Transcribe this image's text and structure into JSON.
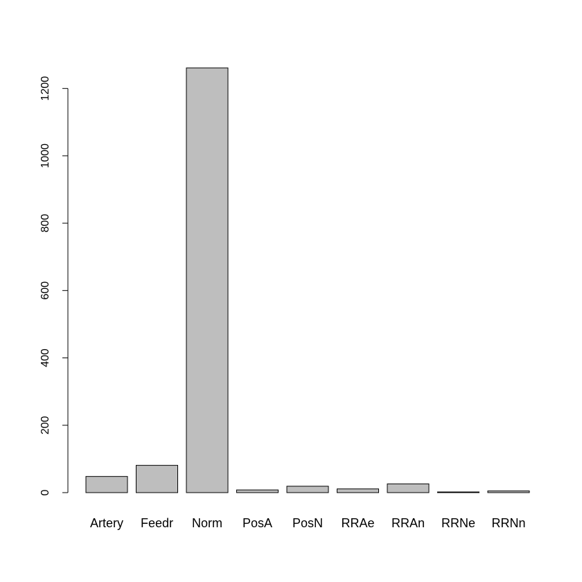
{
  "chart_data": {
    "type": "bar",
    "categories": [
      "Artery",
      "Feedr",
      "Norm",
      "PosA",
      "PosN",
      "RRAe",
      "RRAn",
      "RRNe",
      "RRNn"
    ],
    "values": [
      48,
      81,
      1261,
      8,
      19,
      11,
      26,
      2,
      5
    ],
    "title": "",
    "xlabel": "",
    "ylabel": "",
    "ylim": [
      0,
      1261
    ],
    "yticks": [
      0,
      200,
      400,
      600,
      800,
      1000,
      1200
    ],
    "ytick_labels": [
      "0",
      "200",
      "400",
      "600",
      "800",
      "1000",
      "1200"
    ],
    "grid": false,
    "bar_color": "#bebebe",
    "edge_color": "#000000"
  }
}
